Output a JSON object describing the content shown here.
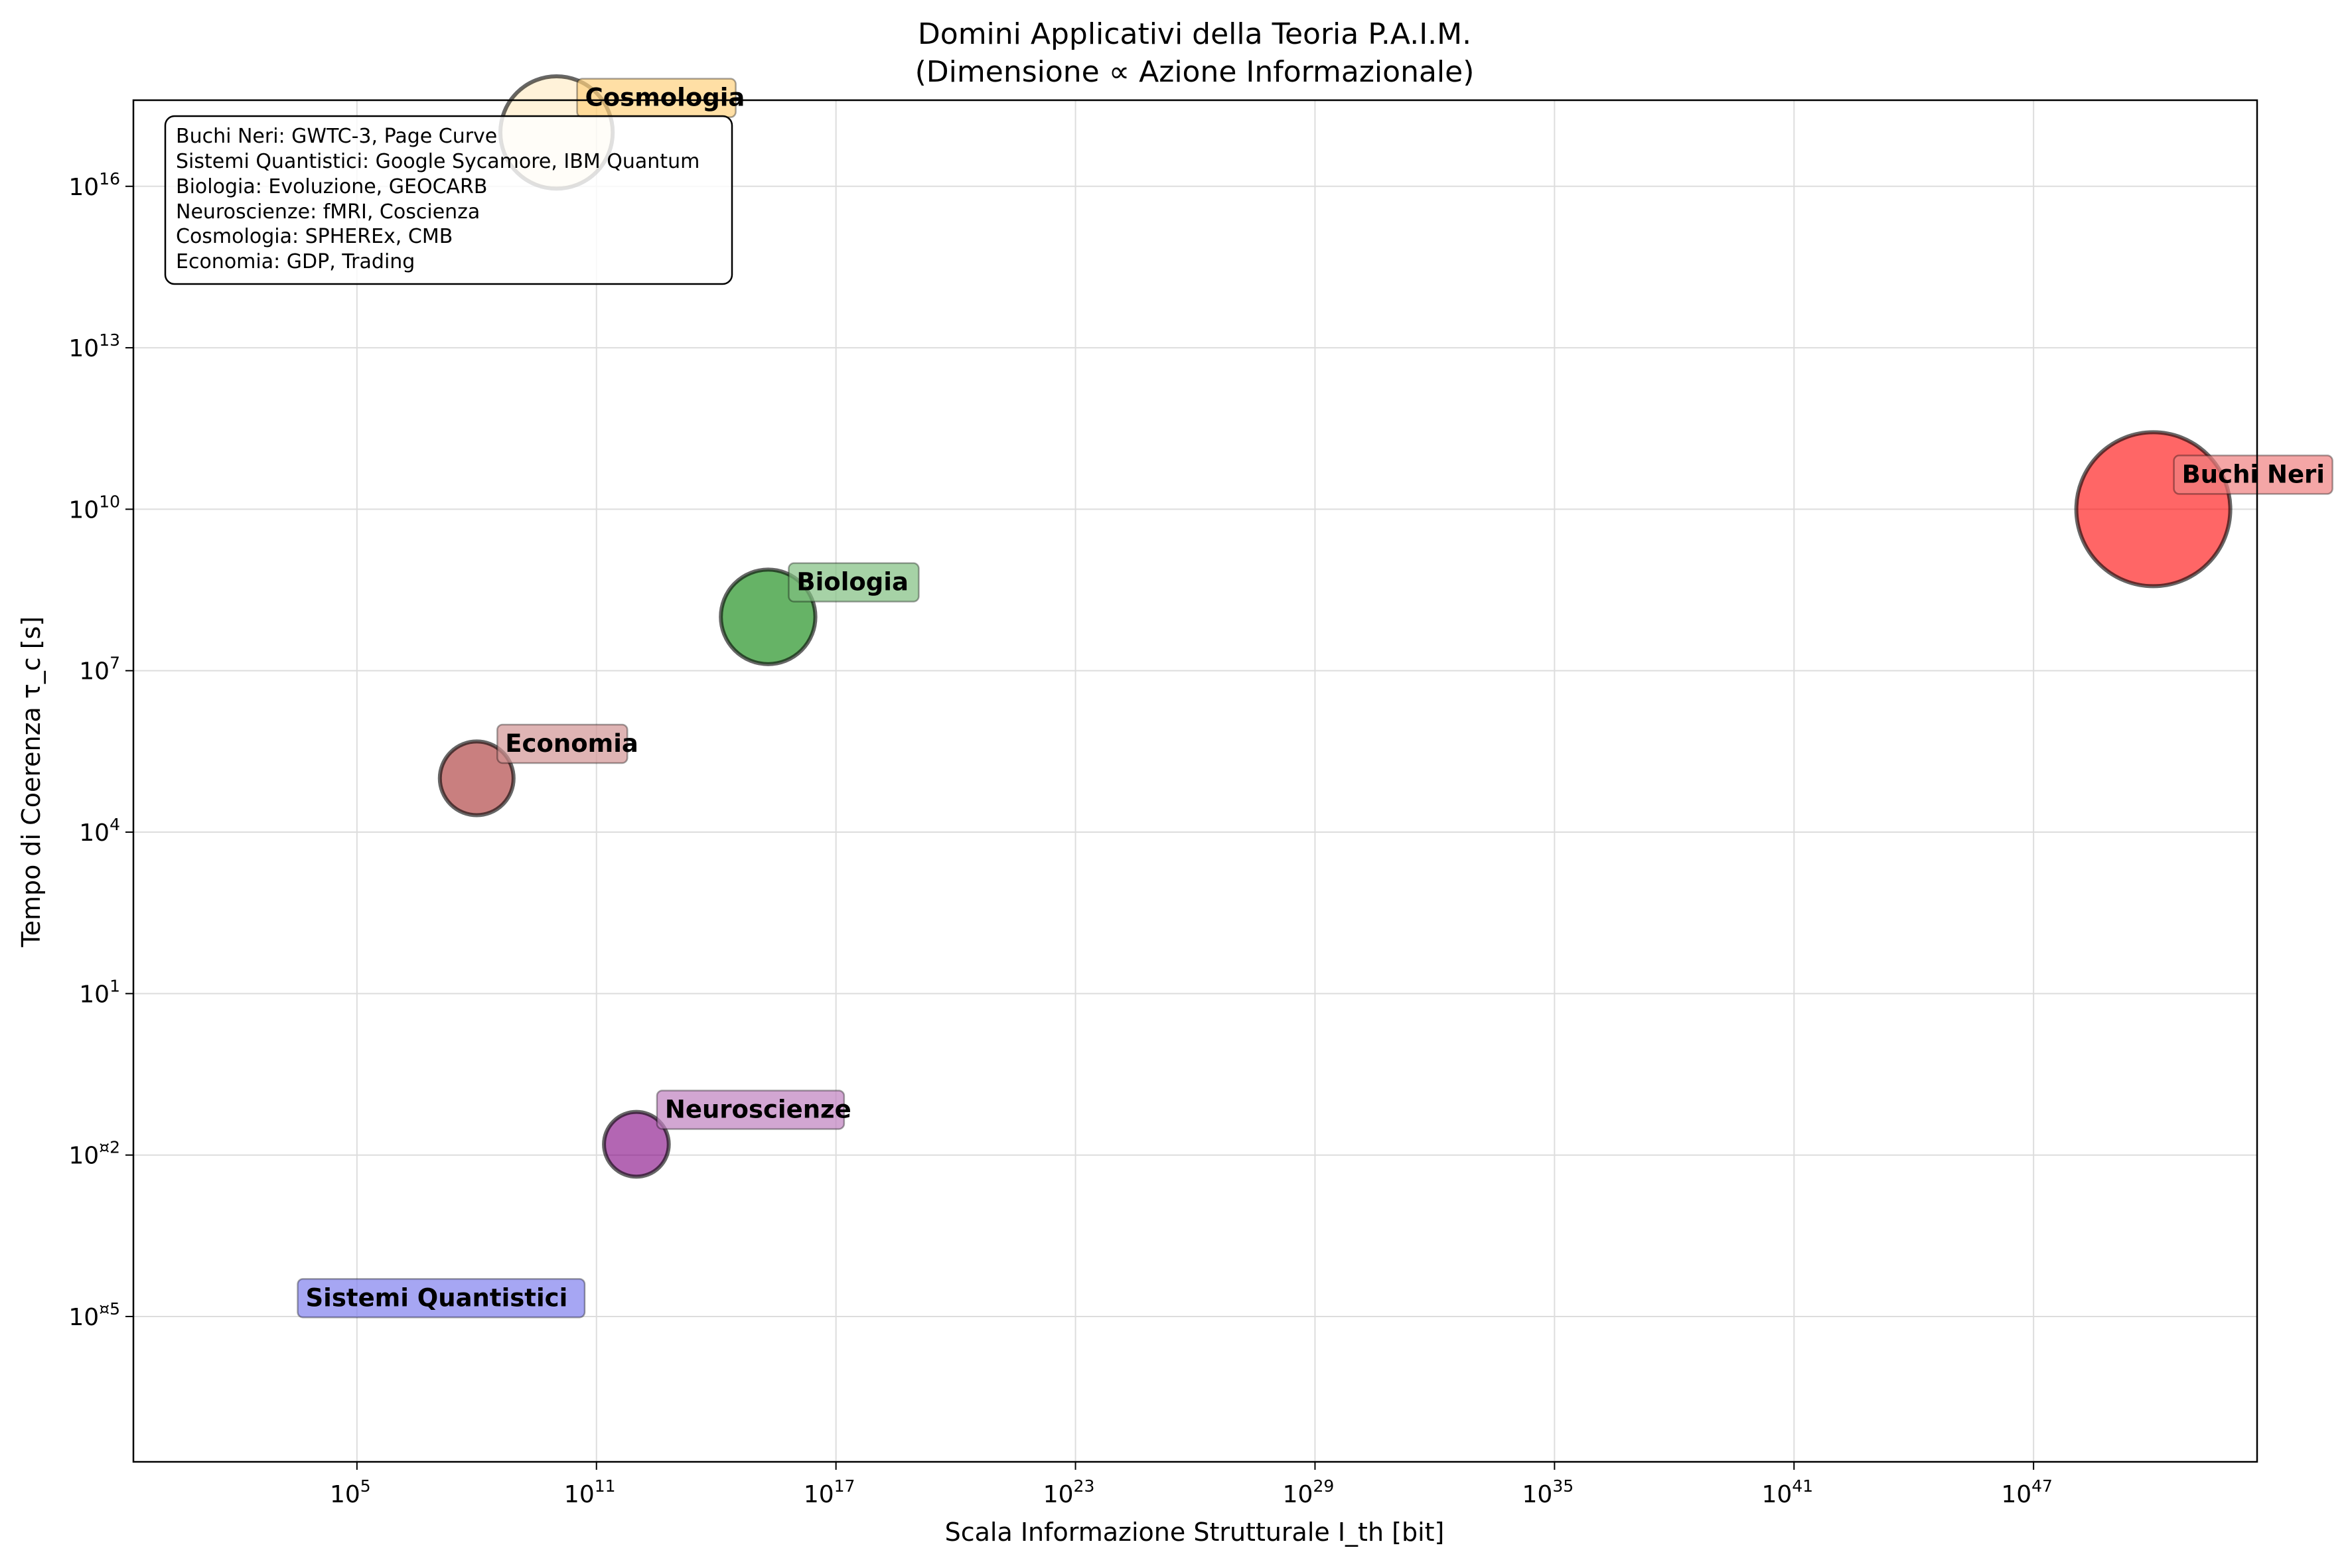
{
  "chart_data": {
    "type": "scatter",
    "title": "Domini Applicativi della Teoria P.A.I.M.",
    "subtitle": "(Dimensione ∝ Azione Informazionale)",
    "xlabel": "Scala Informazione Strutturale I_th [bit]",
    "ylabel": "Tempo di Coerenza τ_c [s]",
    "x_scale": "log",
    "y_scale": "log",
    "xlim_exp": [
      -0.6,
      52.6
    ],
    "ylim_exp": [
      -7.7,
      17.6
    ],
    "grid": true,
    "x_ticks": [
      {
        "base": "10",
        "exp": "5",
        "value": 5
      },
      {
        "base": "10",
        "exp": "11",
        "value": 11
      },
      {
        "base": "10",
        "exp": "17",
        "value": 17
      },
      {
        "base": "10",
        "exp": "23",
        "value": 23
      },
      {
        "base": "10",
        "exp": "29",
        "value": 29
      },
      {
        "base": "10",
        "exp": "35",
        "value": 35
      },
      {
        "base": "10",
        "exp": "41",
        "value": 41
      },
      {
        "base": "10",
        "exp": "47",
        "value": 47
      }
    ],
    "y_ticks": [
      {
        "base": "10",
        "exp": "¤5",
        "value": -5
      },
      {
        "base": "10",
        "exp": "¤2",
        "value": -2
      },
      {
        "base": "10",
        "exp": "1",
        "value": 1
      },
      {
        "base": "10",
        "exp": "4",
        "value": 4
      },
      {
        "base": "10",
        "exp": "7",
        "value": 7
      },
      {
        "base": "10",
        "exp": "10",
        "value": 10
      },
      {
        "base": "10",
        "exp": "13",
        "value": 13
      },
      {
        "base": "10",
        "exp": "16",
        "value": 16
      }
    ],
    "points": [
      {
        "name": "Buchi Neri",
        "log_x": 50,
        "log_y": 10,
        "size": 1.0,
        "color": "#ff0000",
        "label_color": "#f08080"
      },
      {
        "name": "Sistemi Quantistici",
        "log_x": 3,
        "log_y": -5.3,
        "size": 0.0,
        "color": "#0000ff",
        "label_color": "#8080ee"
      },
      {
        "name": "Biologia",
        "log_x": 15.3,
        "log_y": 8,
        "size": 0.6,
        "color": "#008000",
        "label_color": "#80bf80"
      },
      {
        "name": "Neuroscienze",
        "log_x": 12,
        "log_y": -1.8,
        "size": 0.4,
        "color": "#800080",
        "label_color": "#bf80bf"
      },
      {
        "name": "Cosmologia",
        "log_x": 10,
        "log_y": 17,
        "size": 0.72,
        "color": "#ffa500",
        "label_color": "#ffd27f"
      },
      {
        "name": "Economia",
        "log_x": 8,
        "log_y": 5,
        "size": 0.46,
        "color": "#a52a2a",
        "label_color": "#d29494"
      }
    ]
  },
  "info_box": {
    "lines": [
      "Buchi Neri: GWTC-3, Page Curve",
      "Sistemi Quantistici: Google Sycamore, IBM Quantum",
      "Biologia: Evoluzione, GEOCARB",
      "Neuroscienze: fMRI, Coscienza",
      "Cosmologia: SPHEREx, CMB",
      "Economia: GDP, Trading"
    ]
  }
}
